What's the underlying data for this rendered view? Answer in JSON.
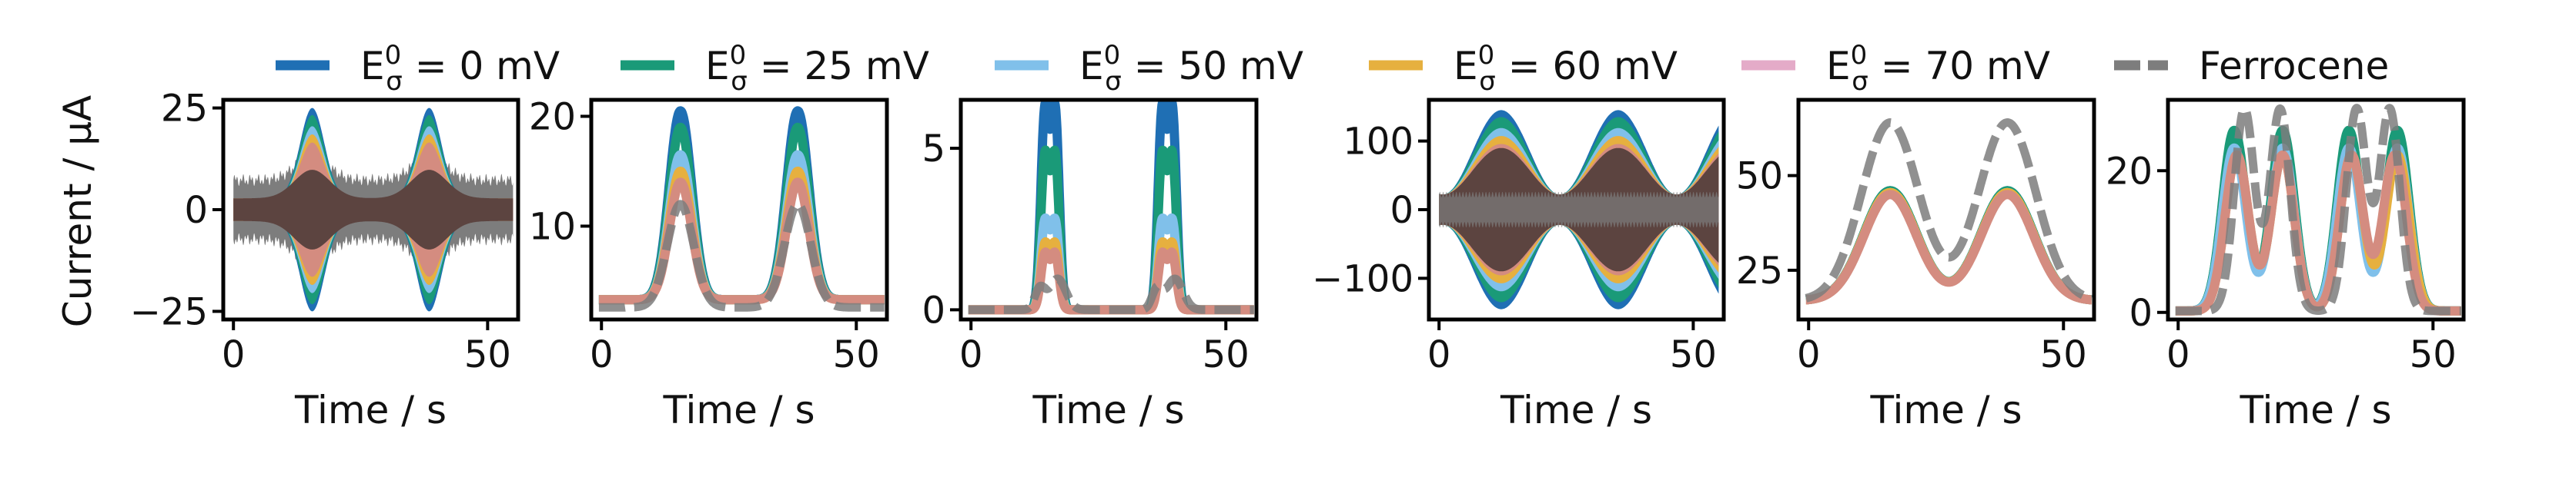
{
  "legend": {
    "items": [
      {
        "label": "E",
        "sup": "0",
        "sub": "σ",
        "rest": " = 0 mV",
        "color": "#1f6fb4",
        "dash": false
      },
      {
        "label": "E",
        "sup": "0",
        "sub": "σ",
        "rest": " = 25 mV",
        "color": "#1a9a78",
        "dash": false
      },
      {
        "label": "E",
        "sup": "0",
        "sub": "σ",
        "rest": " = 50 mV",
        "color": "#80c0ea",
        "dash": false
      },
      {
        "label": "E",
        "sup": "0",
        "sub": "σ",
        "rest": " = 60 mV",
        "color": "#e6b03f",
        "dash": false
      },
      {
        "label": "E",
        "sup": "0",
        "sub": "σ",
        "rest": " = 70 mV",
        "color": "#e4abc8",
        "dash": false
      },
      {
        "label": "Ferrocene",
        "sup": "",
        "sub": "",
        "rest": "",
        "color": "#7d7d7d",
        "dash": true
      }
    ]
  },
  "colors": {
    "s0": "#1f6fb4",
    "s25": "#1a9a78",
    "s50": "#80c0ea",
    "s60": "#e6b03f",
    "s70": "#d48c80",
    "ferrocene": "#7d7d7d",
    "ferrocene_dark": "#5a4540",
    "band_dark": "#5c4440"
  },
  "chart_data": [
    {
      "type": "line",
      "panel": "1",
      "xlabel": "Time / s",
      "ylabel": "Current / μA",
      "xlim": [
        -2,
        56
      ],
      "ylim": [
        -27,
        27
      ],
      "xticks": [
        0,
        50
      ],
      "yticks": [
        -25,
        0,
        25
      ],
      "ytick_labels": [
        "−25",
        "0",
        "25"
      ],
      "style": "ac_full",
      "peaks": [
        15.5,
        38.5
      ],
      "envelope_peak": 25,
      "ferrocene_noise": 6,
      "base_amp": 2.8
    },
    {
      "type": "line",
      "panel": "2",
      "xlabel": "Time / s",
      "ylabel": "",
      "xlim": [
        -2,
        56
      ],
      "ylim": [
        1.5,
        21.5
      ],
      "xticks": [
        0,
        50
      ],
      "yticks": [
        10,
        20
      ],
      "ytick_labels": [
        "10",
        "20"
      ],
      "style": "peaks",
      "peak_times": [
        15.5,
        38.5
      ],
      "width": 2.2,
      "series": [
        {
          "name": "0 mV",
          "base": 3.3,
          "peak": 20.5
        },
        {
          "name": "25 mV",
          "base": 3.3,
          "peak": 19.0
        },
        {
          "name": "50 mV",
          "base": 3.3,
          "peak": 16.5
        },
        {
          "name": "60 mV",
          "base": 3.3,
          "peak": 15.0
        },
        {
          "name": "70 mV",
          "base": 3.3,
          "peak": 14.0
        },
        {
          "name": "Ferrocene",
          "base": 2.6,
          "peak": 12.0
        }
      ]
    },
    {
      "type": "line",
      "panel": "3",
      "xlabel": "Time / s",
      "ylabel": "",
      "xlim": [
        -2,
        56
      ],
      "ylim": [
        -0.3,
        6.5
      ],
      "xticks": [
        0,
        50
      ],
      "yticks": [
        0,
        5
      ],
      "ytick_labels": [
        "0",
        "5"
      ],
      "style": "double_peaks",
      "peak_times": [
        15.5,
        38.5
      ],
      "series": [
        {
          "name": "0 mV",
          "peak": 6.1
        },
        {
          "name": "25 mV",
          "peak": 4.7
        },
        {
          "name": "50 mV",
          "peak": 2.7
        },
        {
          "name": "60 mV",
          "peak": 2.0
        },
        {
          "name": "70 mV",
          "peak": 1.7
        },
        {
          "name": "Ferrocene",
          "peak": 1.6
        }
      ]
    },
    {
      "type": "line",
      "panel": "4",
      "xlabel": "Time / s",
      "ylabel": "",
      "xlim": [
        -2,
        56
      ],
      "ylim": [
        -160,
        160
      ],
      "xticks": [
        0,
        50
      ],
      "yticks": [
        -100,
        0,
        100
      ],
      "ytick_labels": [
        "−100",
        "0",
        "100"
      ],
      "style": "ac_full",
      "peaks": [
        15.5,
        38.5
      ],
      "envelope_peak": 145,
      "ferrocene_noise": 0,
      "base_amp": 22
    },
    {
      "type": "line",
      "panel": "5",
      "xlabel": "Time / s",
      "ylabel": "",
      "xlim": [
        -2,
        56
      ],
      "ylim": [
        12,
        70
      ],
      "xticks": [
        0,
        50
      ],
      "yticks": [
        25,
        50
      ],
      "ytick_labels": [
        "25",
        "50"
      ],
      "style": "broad",
      "peak_times": [
        16,
        39
      ],
      "series": [
        {
          "name": "0 mV",
          "base": 17,
          "peak": 46
        },
        {
          "name": "25 mV",
          "base": 17,
          "peak": 46
        },
        {
          "name": "50 mV",
          "base": 17,
          "peak": 45.5
        },
        {
          "name": "60 mV",
          "base": 17,
          "peak": 45.5
        },
        {
          "name": "70 mV",
          "base": 17,
          "peak": 45
        },
        {
          "name": "Ferrocene",
          "base": 17,
          "peak": 64
        }
      ]
    },
    {
      "type": "line",
      "panel": "6",
      "xlabel": "Time / s",
      "ylabel": "",
      "xlim": [
        -2,
        56
      ],
      "ylim": [
        -1,
        30
      ],
      "xticks": [
        0,
        50
      ],
      "yticks": [
        0,
        20
      ],
      "ytick_labels": [
        "0",
        "20"
      ],
      "style": "four_peaks",
      "series": [
        {
          "name": "0 mV",
          "times": [
            11,
            20.5,
            33.5,
            43
          ],
          "peak": 25
        },
        {
          "name": "25 mV",
          "times": [
            11,
            20.5,
            33.5,
            43
          ],
          "peak": 25.5
        },
        {
          "name": "50 mV",
          "times": [
            11,
            20.5,
            33.5,
            43
          ],
          "peak": 23
        },
        {
          "name": "60 mV",
          "times": [
            11.5,
            20.5,
            34,
            43
          ],
          "peak": 22
        },
        {
          "name": "70 mV",
          "times": [
            11.5,
            20.5,
            34,
            42.5
          ],
          "peak": 22
        },
        {
          "name": "Ferrocene",
          "times": [
            13,
            20,
            35,
            41.5
          ],
          "peak": 28.5
        }
      ]
    }
  ]
}
